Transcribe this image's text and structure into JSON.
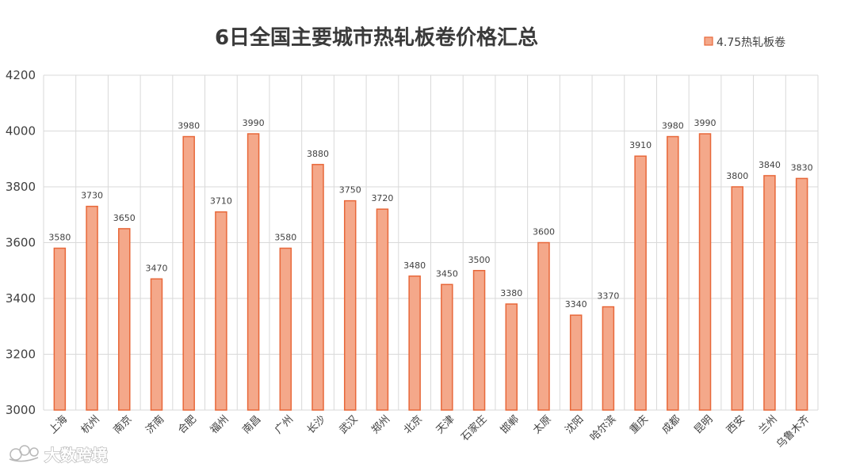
{
  "chart_data": {
    "type": "bar",
    "title": "6日全国主要城市热轧板卷价格汇总",
    "categories": [
      "上海",
      "杭州",
      "南京",
      "济南",
      "合肥",
      "福州",
      "南昌",
      "广州",
      "长沙",
      "武汉",
      "郑州",
      "北京",
      "天津",
      "石家庄",
      "邯郸",
      "太原",
      "沈阳",
      "哈尔滨",
      "重庆",
      "成都",
      "昆明",
      "西安",
      "兰州",
      "乌鲁木齐"
    ],
    "series": [
      {
        "name": "4.75热轧板卷",
        "values": [
          3580,
          3730,
          3650,
          3470,
          3980,
          3710,
          3990,
          3580,
          3880,
          3750,
          3720,
          3480,
          3450,
          3500,
          3380,
          3600,
          3340,
          3370,
          3910,
          3980,
          3990,
          3800,
          3840,
          3830
        ]
      }
    ],
    "ylim": [
      3000,
      4200
    ],
    "yticks": [
      3000,
      3200,
      3400,
      3600,
      3800,
      4000,
      4200
    ],
    "grid": true,
    "legend_position": "top-right",
    "colors": {
      "bar_fill": "#f4a88a",
      "bar_stroke": "#e8683a"
    }
  },
  "watermark": {
    "text": "大数跨境",
    "icon": "cloud-logo-icon"
  }
}
